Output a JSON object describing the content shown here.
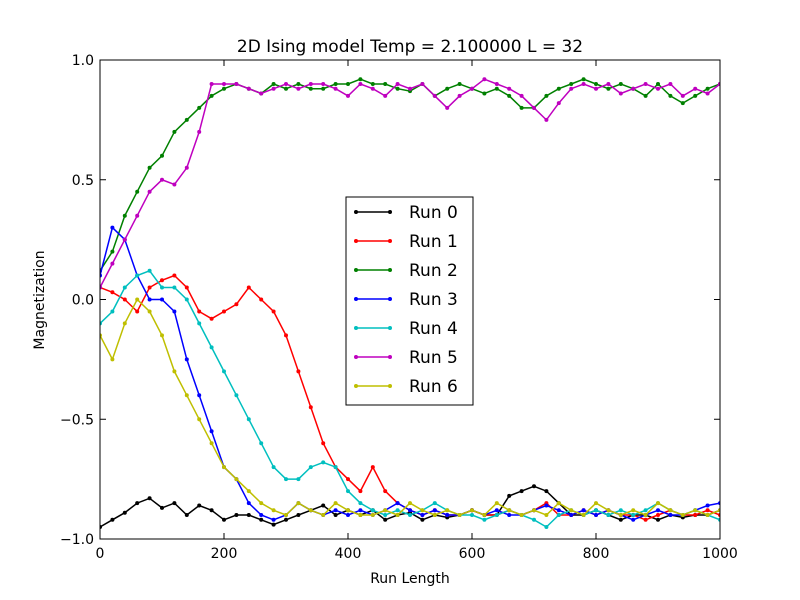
{
  "chart_data": {
    "type": "line",
    "title": "2D Ising model Temp = 2.100000 L = 32",
    "xlabel": "Run Length",
    "ylabel": "Magnetization",
    "xlim": [
      0,
      1000
    ],
    "ylim": [
      -1.0,
      1.0
    ],
    "xticks": [
      0,
      200,
      400,
      600,
      800,
      1000
    ],
    "xtick_labels": [
      "0",
      "200",
      "400",
      "600",
      "800",
      "1000"
    ],
    "yticks": [
      -1.0,
      -0.5,
      0.0,
      0.5,
      1.0
    ],
    "ytick_labels": [
      "−1.0",
      "−0.5",
      "0.0",
      "0.5",
      "1.0"
    ],
    "grid": false,
    "legend_position": "center",
    "series": [
      {
        "name": "Run 0",
        "color": "#000000",
        "x": [
          0,
          20,
          40,
          60,
          80,
          100,
          120,
          140,
          160,
          180,
          200,
          220,
          240,
          260,
          280,
          300,
          320,
          340,
          360,
          380,
          400,
          420,
          440,
          460,
          480,
          500,
          520,
          540,
          560,
          580,
          600,
          620,
          640,
          660,
          680,
          700,
          720,
          740,
          760,
          780,
          800,
          820,
          840,
          860,
          880,
          900,
          920,
          940,
          960,
          980,
          1000
        ],
        "y": [
          -0.95,
          -0.92,
          -0.89,
          -0.85,
          -0.83,
          -0.87,
          -0.85,
          -0.9,
          -0.86,
          -0.88,
          -0.92,
          -0.9,
          -0.9,
          -0.92,
          -0.94,
          -0.92,
          -0.9,
          -0.88,
          -0.86,
          -0.9,
          -0.88,
          -0.9,
          -0.88,
          -0.92,
          -0.9,
          -0.89,
          -0.92,
          -0.9,
          -0.91,
          -0.9,
          -0.88,
          -0.9,
          -0.9,
          -0.82,
          -0.8,
          -0.78,
          -0.8,
          -0.85,
          -0.9,
          -0.9,
          -0.88,
          -0.9,
          -0.92,
          -0.9,
          -0.9,
          -0.92,
          -0.9,
          -0.91,
          -0.9,
          -0.9,
          -0.88
        ]
      },
      {
        "name": "Run 1",
        "color": "#ff0000",
        "x": [
          0,
          20,
          40,
          60,
          80,
          100,
          120,
          140,
          160,
          180,
          200,
          220,
          240,
          260,
          280,
          300,
          320,
          340,
          360,
          380,
          400,
          420,
          440,
          460,
          480,
          500,
          520,
          540,
          560,
          580,
          600,
          620,
          640,
          660,
          680,
          700,
          720,
          740,
          760,
          780,
          800,
          820,
          840,
          860,
          880,
          900,
          920,
          940,
          960,
          980,
          1000
        ],
        "y": [
          0.05,
          0.03,
          0.0,
          -0.05,
          0.05,
          0.08,
          0.1,
          0.05,
          -0.05,
          -0.08,
          -0.05,
          -0.02,
          0.05,
          0.0,
          -0.05,
          -0.15,
          -0.3,
          -0.45,
          -0.6,
          -0.7,
          -0.75,
          -0.8,
          -0.7,
          -0.8,
          -0.85,
          -0.88,
          -0.9,
          -0.88,
          -0.9,
          -0.9,
          -0.88,
          -0.9,
          -0.9,
          -0.88,
          -0.9,
          -0.88,
          -0.85,
          -0.9,
          -0.9,
          -0.88,
          -0.9,
          -0.88,
          -0.9,
          -0.9,
          -0.92,
          -0.9,
          -0.88,
          -0.9,
          -0.9,
          -0.88,
          -0.9
        ]
      },
      {
        "name": "Run 2",
        "color": "#008000",
        "x": [
          0,
          20,
          40,
          60,
          80,
          100,
          120,
          140,
          160,
          180,
          200,
          220,
          240,
          260,
          280,
          300,
          320,
          340,
          360,
          380,
          400,
          420,
          440,
          460,
          480,
          500,
          520,
          540,
          560,
          580,
          600,
          620,
          640,
          660,
          680,
          700,
          720,
          740,
          760,
          780,
          800,
          820,
          840,
          860,
          880,
          900,
          920,
          940,
          960,
          980,
          1000
        ],
        "y": [
          0.12,
          0.2,
          0.35,
          0.45,
          0.55,
          0.6,
          0.7,
          0.75,
          0.8,
          0.85,
          0.88,
          0.9,
          0.88,
          0.86,
          0.9,
          0.88,
          0.9,
          0.88,
          0.88,
          0.9,
          0.9,
          0.92,
          0.9,
          0.9,
          0.88,
          0.87,
          0.9,
          0.85,
          0.88,
          0.9,
          0.88,
          0.86,
          0.88,
          0.85,
          0.8,
          0.8,
          0.85,
          0.88,
          0.9,
          0.92,
          0.9,
          0.88,
          0.9,
          0.88,
          0.85,
          0.9,
          0.85,
          0.82,
          0.85,
          0.88,
          0.9
        ]
      },
      {
        "name": "Run 3",
        "color": "#0000ff",
        "x": [
          0,
          20,
          40,
          60,
          80,
          100,
          120,
          140,
          160,
          180,
          200,
          220,
          240,
          260,
          280,
          300,
          320,
          340,
          360,
          380,
          400,
          420,
          440,
          460,
          480,
          500,
          520,
          540,
          560,
          580,
          600,
          620,
          640,
          660,
          680,
          700,
          720,
          740,
          760,
          780,
          800,
          820,
          840,
          860,
          880,
          900,
          920,
          940,
          960,
          980,
          1000
        ],
        "y": [
          0.1,
          0.3,
          0.25,
          0.1,
          0.0,
          0.0,
          -0.05,
          -0.25,
          -0.4,
          -0.55,
          -0.7,
          -0.75,
          -0.85,
          -0.9,
          -0.92,
          -0.9,
          -0.85,
          -0.88,
          -0.9,
          -0.88,
          -0.9,
          -0.88,
          -0.9,
          -0.88,
          -0.85,
          -0.88,
          -0.9,
          -0.88,
          -0.9,
          -0.9,
          -0.88,
          -0.9,
          -0.88,
          -0.9,
          -0.9,
          -0.88,
          -0.86,
          -0.88,
          -0.9,
          -0.88,
          -0.9,
          -0.88,
          -0.9,
          -0.92,
          -0.9,
          -0.88,
          -0.9,
          -0.9,
          -0.88,
          -0.86,
          -0.85
        ]
      },
      {
        "name": "Run 4",
        "color": "#00bfbf",
        "x": [
          0,
          20,
          40,
          60,
          80,
          100,
          120,
          140,
          160,
          180,
          200,
          220,
          240,
          260,
          280,
          300,
          320,
          340,
          360,
          380,
          400,
          420,
          440,
          460,
          480,
          500,
          520,
          540,
          560,
          580,
          600,
          620,
          640,
          660,
          680,
          700,
          720,
          740,
          760,
          780,
          800,
          820,
          840,
          860,
          880,
          900,
          920,
          940,
          960,
          980,
          1000
        ],
        "y": [
          -0.1,
          -0.05,
          0.05,
          0.1,
          0.12,
          0.05,
          0.05,
          0.0,
          -0.1,
          -0.2,
          -0.3,
          -0.4,
          -0.5,
          -0.6,
          -0.7,
          -0.75,
          -0.75,
          -0.7,
          -0.68,
          -0.7,
          -0.8,
          -0.85,
          -0.88,
          -0.9,
          -0.88,
          -0.9,
          -0.88,
          -0.85,
          -0.88,
          -0.9,
          -0.9,
          -0.92,
          -0.9,
          -0.88,
          -0.9,
          -0.92,
          -0.95,
          -0.9,
          -0.88,
          -0.9,
          -0.88,
          -0.9,
          -0.88,
          -0.9,
          -0.88,
          -0.85,
          -0.88,
          -0.9,
          -0.88,
          -0.9,
          -0.92
        ]
      },
      {
        "name": "Run 5",
        "color": "#bf00bf",
        "x": [
          0,
          20,
          40,
          60,
          80,
          100,
          120,
          140,
          160,
          180,
          200,
          220,
          240,
          260,
          280,
          300,
          320,
          340,
          360,
          380,
          400,
          420,
          440,
          460,
          480,
          500,
          520,
          540,
          560,
          580,
          600,
          620,
          640,
          660,
          680,
          700,
          720,
          740,
          760,
          780,
          800,
          820,
          840,
          860,
          880,
          900,
          920,
          940,
          960,
          980,
          1000
        ],
        "y": [
          0.05,
          0.15,
          0.25,
          0.35,
          0.45,
          0.5,
          0.48,
          0.55,
          0.7,
          0.9,
          0.9,
          0.9,
          0.88,
          0.86,
          0.88,
          0.9,
          0.88,
          0.9,
          0.9,
          0.88,
          0.85,
          0.9,
          0.88,
          0.85,
          0.9,
          0.88,
          0.9,
          0.85,
          0.8,
          0.85,
          0.88,
          0.92,
          0.9,
          0.88,
          0.85,
          0.8,
          0.75,
          0.82,
          0.88,
          0.9,
          0.88,
          0.9,
          0.86,
          0.88,
          0.9,
          0.88,
          0.9,
          0.85,
          0.88,
          0.86,
          0.9
        ]
      },
      {
        "name": "Run 6",
        "color": "#bfbf00",
        "x": [
          0,
          20,
          40,
          60,
          80,
          100,
          120,
          140,
          160,
          180,
          200,
          220,
          240,
          260,
          280,
          300,
          320,
          340,
          360,
          380,
          400,
          420,
          440,
          460,
          480,
          500,
          520,
          540,
          560,
          580,
          600,
          620,
          640,
          660,
          680,
          700,
          720,
          740,
          760,
          780,
          800,
          820,
          840,
          860,
          880,
          900,
          920,
          940,
          960,
          980,
          1000
        ],
        "y": [
          -0.15,
          -0.25,
          -0.1,
          0.0,
          -0.05,
          -0.15,
          -0.3,
          -0.4,
          -0.5,
          -0.6,
          -0.7,
          -0.75,
          -0.8,
          -0.85,
          -0.88,
          -0.9,
          -0.85,
          -0.88,
          -0.9,
          -0.85,
          -0.88,
          -0.9,
          -0.9,
          -0.88,
          -0.9,
          -0.85,
          -0.88,
          -0.9,
          -0.88,
          -0.9,
          -0.88,
          -0.9,
          -0.85,
          -0.88,
          -0.9,
          -0.88,
          -0.9,
          -0.85,
          -0.88,
          -0.9,
          -0.85,
          -0.88,
          -0.9,
          -0.88,
          -0.9,
          -0.85,
          -0.88,
          -0.9,
          -0.88,
          -0.9,
          -0.88
        ]
      }
    ]
  }
}
